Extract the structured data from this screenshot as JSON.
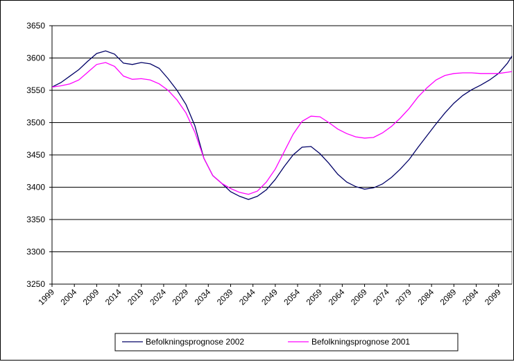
{
  "chart_data": {
    "type": "line",
    "x": [
      1999,
      2001,
      2003,
      2005,
      2007,
      2009,
      2011,
      2013,
      2015,
      2017,
      2019,
      2021,
      2023,
      2025,
      2027,
      2029,
      2031,
      2033,
      2035,
      2037,
      2039,
      2041,
      2043,
      2045,
      2047,
      2049,
      2051,
      2053,
      2055,
      2057,
      2059,
      2061,
      2063,
      2065,
      2067,
      2069,
      2071,
      2073,
      2075,
      2077,
      2079,
      2081,
      2083,
      2085,
      2087,
      2089,
      2091,
      2093,
      2095,
      2097,
      2099,
      2101,
      2102
    ],
    "series": [
      {
        "name": "Befolkningsprognose 2002",
        "color": "#000066",
        "values": [
          3555,
          3562,
          3572,
          3582,
          3595,
          3607,
          3611,
          3606,
          3592,
          3590,
          3593,
          3591,
          3584,
          3568,
          3550,
          3528,
          3495,
          3445,
          3418,
          3406,
          3393,
          3386,
          3381,
          3386,
          3396,
          3412,
          3432,
          3450,
          3462,
          3463,
          3452,
          3437,
          3420,
          3408,
          3401,
          3397,
          3399,
          3405,
          3415,
          3428,
          3443,
          3462,
          3480,
          3498,
          3515,
          3530,
          3542,
          3551,
          3558,
          3566,
          3576,
          3592,
          3603
        ]
      },
      {
        "name": "Befolkningsprognose 2001",
        "color": "#ff00ff",
        "values": [
          3555,
          3557,
          3560,
          3566,
          3578,
          3590,
          3593,
          3587,
          3572,
          3567,
          3568,
          3566,
          3560,
          3550,
          3535,
          3515,
          3485,
          3445,
          3418,
          3406,
          3398,
          3392,
          3389,
          3394,
          3408,
          3428,
          3455,
          3482,
          3502,
          3510,
          3509,
          3500,
          3490,
          3483,
          3478,
          3476,
          3477,
          3484,
          3494,
          3507,
          3522,
          3540,
          3554,
          3566,
          3573,
          3576,
          3577,
          3577,
          3576,
          3576,
          3576,
          3578,
          3579
        ]
      }
    ],
    "xlim": [
      1999,
      2102
    ],
    "xticks": [
      1999,
      2004,
      2009,
      2014,
      2019,
      2024,
      2029,
      2034,
      2039,
      2044,
      2049,
      2054,
      2059,
      2064,
      2069,
      2074,
      2079,
      2084,
      2089,
      2094,
      2099
    ],
    "ylim": [
      3250,
      3650
    ],
    "yticks": [
      3250,
      3300,
      3350,
      3400,
      3450,
      3500,
      3550,
      3600,
      3650
    ],
    "grid": true,
    "legend": "bottom"
  }
}
